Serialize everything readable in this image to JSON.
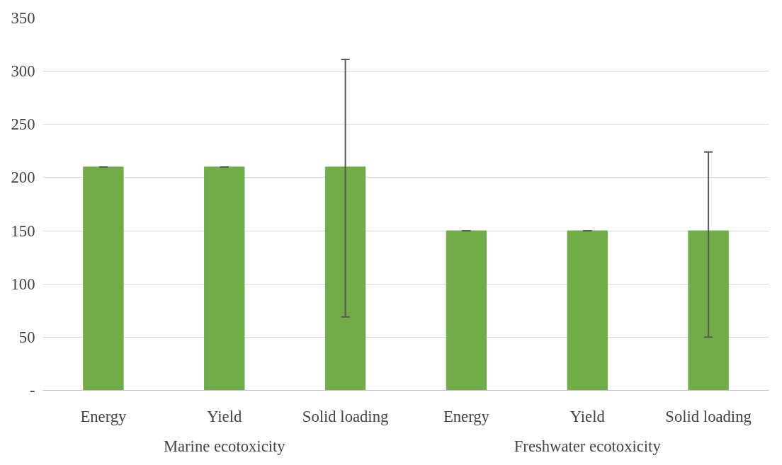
{
  "chart_data": {
    "type": "bar",
    "categories": [
      "Energy",
      "Yield",
      "Solid loading",
      "Energy",
      "Yield",
      "Solid loading"
    ],
    "series": [
      {
        "color": "#70ad47",
        "values": [
          210,
          210,
          210,
          150,
          150,
          150
        ],
        "errors": [
          0,
          0,
          [
            69,
            311
          ],
          0,
          0,
          [
            50,
            224
          ]
        ]
      }
    ],
    "annotations": [
      "Marine ecotoxicity",
      "Freshwater ecotoxicity"
    ],
    "ylim": [
      0,
      350
    ],
    "yticks": [
      {
        "value": 0,
        "label": "-"
      },
      50,
      100,
      150,
      200,
      250,
      300,
      350
    ],
    "grid": "y"
  }
}
